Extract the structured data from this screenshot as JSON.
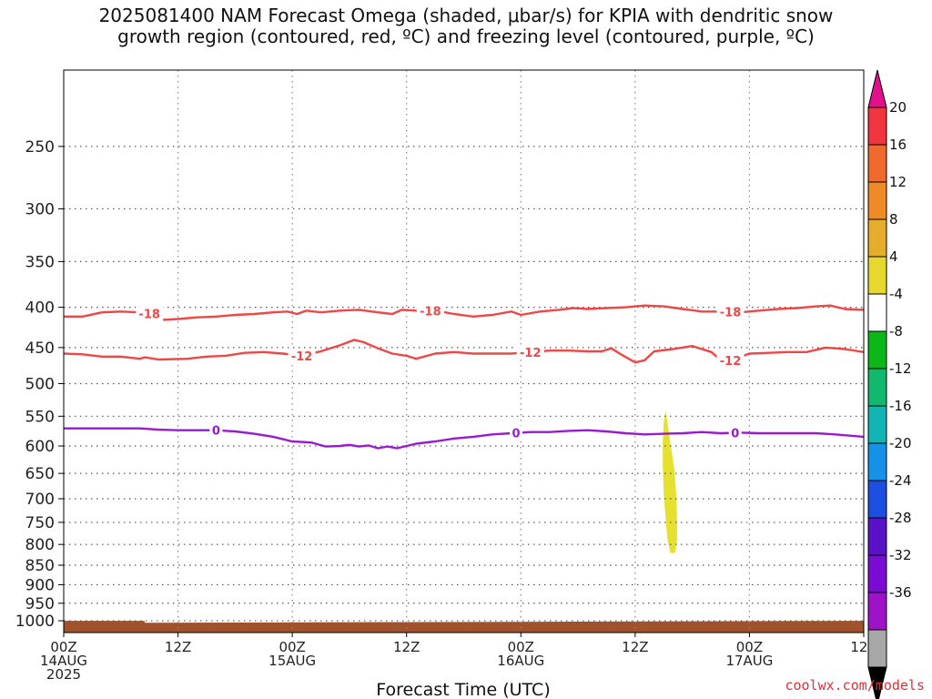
{
  "title": {
    "line1": "2025081400 NAM Forecast Omega (shaded, μbar/s) for KPIA with dendritic snow",
    "line2": "growth region (contoured, red, ºC) and freezing level (contoured, purple, ºC)"
  },
  "credit": "coolwx.com/models",
  "chart_data": {
    "type": "time-height contour",
    "xlabel": "Forecast Time (UTC)",
    "ylabel": "",
    "x_unit": "forecast hours from 2025-08-14 00Z",
    "xlim": [
      0,
      84
    ],
    "x_ticks": [
      {
        "hour": 0,
        "lines": [
          "00Z",
          "14AUG",
          "2025"
        ]
      },
      {
        "hour": 12,
        "lines": [
          "12Z"
        ]
      },
      {
        "hour": 24,
        "lines": [
          "00Z",
          "15AUG"
        ]
      },
      {
        "hour": 36,
        "lines": [
          "12Z"
        ]
      },
      {
        "hour": 48,
        "lines": [
          "00Z",
          "16AUG"
        ]
      },
      {
        "hour": 60,
        "lines": [
          "12Z"
        ]
      },
      {
        "hour": 72,
        "lines": [
          "00Z",
          "17AUG"
        ]
      },
      {
        "hour": 84,
        "lines": [
          "12Z"
        ]
      }
    ],
    "y_unit": "hPa",
    "y_scale": "log, inverted",
    "ylim": [
      1035,
      200
    ],
    "y_ticks": [
      250,
      300,
      350,
      400,
      450,
      500,
      550,
      600,
      650,
      700,
      750,
      800,
      850,
      900,
      950,
      1000
    ],
    "grid": true,
    "contours": [
      {
        "name": "dendritic -18",
        "label": "-18",
        "color": "#ef4646",
        "label_hours": [
          9,
          38.5,
          70
        ],
        "points": [
          [
            0,
            411
          ],
          [
            2,
            411
          ],
          [
            4,
            406
          ],
          [
            6,
            405
          ],
          [
            8,
            406
          ],
          [
            9.5,
            408
          ],
          [
            10.5,
            415
          ],
          [
            12,
            414
          ],
          [
            14,
            412
          ],
          [
            16,
            411
          ],
          [
            18,
            409
          ],
          [
            20,
            408
          ],
          [
            22,
            406
          ],
          [
            23.5,
            405
          ],
          [
            24.5,
            408
          ],
          [
            25.5,
            404
          ],
          [
            27,
            406
          ],
          [
            29,
            404
          ],
          [
            31,
            403
          ],
          [
            33,
            406
          ],
          [
            34.5,
            408
          ],
          [
            35.5,
            403
          ],
          [
            37,
            404
          ],
          [
            39,
            404
          ],
          [
            41,
            408
          ],
          [
            43,
            411
          ],
          [
            45,
            409
          ],
          [
            47,
            405
          ],
          [
            48,
            409
          ],
          [
            50,
            405
          ],
          [
            52,
            403
          ],
          [
            53.5,
            401
          ],
          [
            55,
            402
          ],
          [
            57,
            401
          ],
          [
            59,
            400
          ],
          [
            61,
            398
          ],
          [
            63,
            399
          ],
          [
            65,
            402
          ],
          [
            67,
            405
          ],
          [
            69,
            405
          ],
          [
            71,
            406
          ],
          [
            73,
            404
          ],
          [
            75,
            402
          ],
          [
            77,
            401
          ],
          [
            79,
            399
          ],
          [
            80.5,
            398
          ],
          [
            82,
            402
          ],
          [
            84,
            403
          ]
        ]
      },
      {
        "name": "dendritic -12",
        "label": "-12",
        "color": "#ef4646",
        "label_hours": [
          25,
          49,
          70
        ],
        "points": [
          [
            0,
            458
          ],
          [
            2,
            459
          ],
          [
            4,
            462
          ],
          [
            6,
            462
          ],
          [
            8,
            465
          ],
          [
            8.5,
            463
          ],
          [
            10,
            466
          ],
          [
            13,
            465
          ],
          [
            15,
            462
          ],
          [
            17,
            461
          ],
          [
            19,
            457
          ],
          [
            21,
            456
          ],
          [
            23,
            458
          ],
          [
            25,
            461
          ],
          [
            27,
            455
          ],
          [
            29,
            447
          ],
          [
            30.5,
            440
          ],
          [
            31.5,
            443
          ],
          [
            33,
            451
          ],
          [
            34.5,
            458
          ],
          [
            36,
            461
          ],
          [
            37,
            465
          ],
          [
            39,
            458
          ],
          [
            41,
            456
          ],
          [
            43,
            458
          ],
          [
            45,
            458
          ],
          [
            47,
            458
          ],
          [
            49,
            456
          ],
          [
            51,
            454
          ],
          [
            53,
            454
          ],
          [
            55,
            455
          ],
          [
            56.5,
            455
          ],
          [
            57.5,
            451
          ],
          [
            58.5,
            459
          ],
          [
            60,
            470
          ],
          [
            61,
            467
          ],
          [
            62,
            455
          ],
          [
            64,
            452
          ],
          [
            66,
            448
          ],
          [
            68,
            456
          ],
          [
            69,
            467
          ],
          [
            70,
            467
          ],
          [
            72,
            458
          ],
          [
            74,
            457
          ],
          [
            76,
            456
          ],
          [
            78,
            456
          ],
          [
            80,
            450
          ],
          [
            82,
            452
          ],
          [
            84,
            456
          ]
        ]
      },
      {
        "name": "freezing level 0",
        "label": "0",
        "color": "#9a1ad2",
        "label_hours": [
          16,
          47.5,
          70.5
        ],
        "points": [
          [
            0,
            570
          ],
          [
            2,
            570
          ],
          [
            5,
            570
          ],
          [
            8,
            570
          ],
          [
            10,
            572
          ],
          [
            12,
            573
          ],
          [
            14,
            573
          ],
          [
            16,
            573
          ],
          [
            18,
            575
          ],
          [
            20,
            579
          ],
          [
            22,
            584
          ],
          [
            24,
            592
          ],
          [
            26,
            594
          ],
          [
            27.5,
            601
          ],
          [
            29,
            600
          ],
          [
            30,
            598
          ],
          [
            31,
            601
          ],
          [
            32,
            599
          ],
          [
            33,
            604
          ],
          [
            34,
            601
          ],
          [
            35,
            604
          ],
          [
            37,
            596
          ],
          [
            39,
            592
          ],
          [
            41,
            587
          ],
          [
            43,
            584
          ],
          [
            45,
            580
          ],
          [
            47,
            578
          ],
          [
            49,
            576
          ],
          [
            51,
            576
          ],
          [
            53,
            574
          ],
          [
            55,
            573
          ],
          [
            57,
            575
          ],
          [
            59,
            578
          ],
          [
            61,
            580
          ],
          [
            63,
            579
          ],
          [
            65,
            578
          ],
          [
            67,
            576
          ],
          [
            69,
            578
          ],
          [
            71,
            577
          ],
          [
            73,
            578
          ],
          [
            75,
            578
          ],
          [
            77,
            578
          ],
          [
            79,
            578
          ],
          [
            81,
            580
          ],
          [
            84,
            584
          ]
        ]
      }
    ],
    "shaded_areas": [
      {
        "color": "#e6e02e",
        "legend_bin": "4 to 8",
        "outline": [
          [
            63.2,
            540
          ],
          [
            63.4,
            560
          ],
          [
            63.7,
            595
          ],
          [
            64.1,
            640
          ],
          [
            64.3,
            690
          ],
          [
            64.4,
            740
          ],
          [
            64.4,
            790
          ],
          [
            64.2,
            820
          ],
          [
            63.7,
            820
          ],
          [
            63.4,
            790
          ],
          [
            63.2,
            740
          ],
          [
            63.0,
            690
          ],
          [
            62.9,
            640
          ],
          [
            62.9,
            590
          ],
          [
            63.0,
            560
          ]
        ]
      },
      {
        "color": "#a0522d",
        "legend_bin": "terrain (surface pressure)",
        "outline": [
          [
            0,
            1000
          ],
          [
            8.5,
            1000
          ],
          [
            8.5,
            1006
          ],
          [
            84,
            1000
          ],
          [
            84,
            1035
          ],
          [
            0,
            1035
          ]
        ]
      }
    ],
    "colorbar": {
      "labels": [
        "20",
        "16",
        "12",
        "8",
        "4",
        "-4",
        "-8",
        "-12",
        "-16",
        "-20",
        "-24",
        "-28",
        "-32",
        "-36"
      ],
      "colors_top_to_bottom": [
        "#e0118a",
        "#f0353e",
        "#ef6a2c",
        "#ee8b26",
        "#e6ad2c",
        "#e6d82e",
        "#ffffff",
        "#0cb718",
        "#13b86c",
        "#12b4b4",
        "#1592e8",
        "#1c4ee0",
        "#5a12c8",
        "#7a0bd2",
        "#9f12c8",
        "#a8a8a8",
        "#000000"
      ]
    }
  }
}
